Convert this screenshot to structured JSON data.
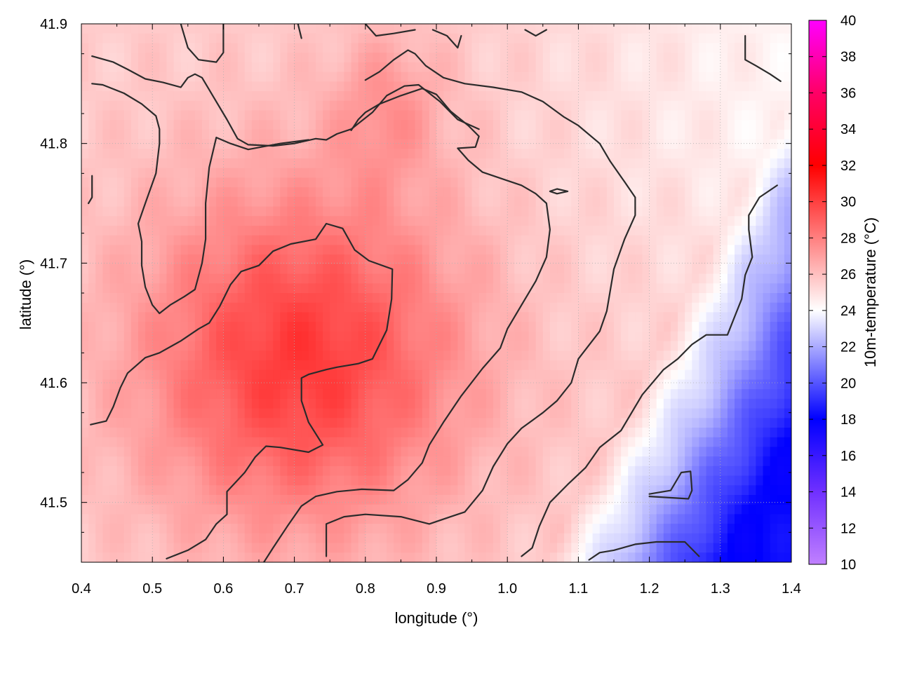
{
  "chart_data": {
    "type": "heatmap",
    "xlabel": "longitude (°)",
    "ylabel": "latitude (°)",
    "colorbar_label": "10m-temperature (°C)",
    "xlim": [
      0.4,
      1.4
    ],
    "ylim": [
      41.45,
      41.9
    ],
    "x_ticks": [
      "0.4",
      "0.5",
      "0.6",
      "0.7",
      "0.8",
      "0.9",
      "1.0",
      "1.1",
      "1.2",
      "1.3",
      "1.4"
    ],
    "y_ticks": [
      "41.5",
      "41.6",
      "41.7",
      "41.8",
      "41.9"
    ],
    "colorbar_range": [
      10,
      40
    ],
    "colorbar_ticks": [
      "10",
      "12",
      "14",
      "16",
      "18",
      "20",
      "22",
      "24",
      "26",
      "28",
      "30",
      "32",
      "34",
      "36",
      "38",
      "40"
    ],
    "colormap": [
      {
        "value": 10,
        "color": "#c080ff"
      },
      {
        "value": 14,
        "color": "#7030ff"
      },
      {
        "value": 18,
        "color": "#0000ff"
      },
      {
        "value": 24,
        "color": "#ffffff"
      },
      {
        "value": 32,
        "color": "#ff0000"
      },
      {
        "value": 36,
        "color": "#ff0066"
      },
      {
        "value": 40,
        "color": "#ff00ff"
      }
    ],
    "grid": true,
    "contours": [
      [
        [
          0.415,
          41.873
        ],
        [
          0.445,
          41.868
        ],
        [
          0.465,
          41.862
        ],
        [
          0.49,
          41.854
        ],
        [
          0.515,
          41.851
        ],
        [
          0.54,
          41.847
        ],
        [
          0.55,
          41.855
        ],
        [
          0.56,
          41.858
        ],
        [
          0.57,
          41.855
        ],
        [
          0.585,
          41.84
        ],
        [
          0.605,
          41.82
        ],
        [
          0.62,
          41.804
        ],
        [
          0.635,
          41.799
        ],
        [
          0.67,
          41.798
        ],
        [
          0.7,
          41.8
        ],
        [
          0.73,
          41.804
        ],
        [
          0.745,
          41.803
        ],
        [
          0.76,
          41.808
        ],
        [
          0.78,
          41.812
        ],
        [
          0.81,
          41.826
        ],
        [
          0.83,
          41.84
        ],
        [
          0.855,
          41.848
        ],
        [
          0.875,
          41.849
        ],
        [
          0.905,
          41.835
        ],
        [
          0.93,
          41.82
        ],
        [
          0.96,
          41.812
        ]
      ],
      [
        [
          0.415,
          41.85
        ],
        [
          0.43,
          41.849
        ],
        [
          0.46,
          41.842
        ],
        [
          0.485,
          41.833
        ],
        [
          0.505,
          41.823
        ],
        [
          0.51,
          41.812
        ],
        [
          0.51,
          41.8
        ],
        [
          0.505,
          41.775
        ],
        [
          0.49,
          41.75
        ],
        [
          0.48,
          41.733
        ],
        [
          0.485,
          41.718
        ],
        [
          0.485,
          41.698
        ],
        [
          0.49,
          41.68
        ],
        [
          0.5,
          41.665
        ],
        [
          0.51,
          41.658
        ],
        [
          0.525,
          41.665
        ],
        [
          0.545,
          41.672
        ],
        [
          0.56,
          41.678
        ],
        [
          0.57,
          41.7
        ],
        [
          0.575,
          41.72
        ],
        [
          0.575,
          41.75
        ],
        [
          0.58,
          41.78
        ],
        [
          0.59,
          41.805
        ],
        [
          0.61,
          41.8
        ],
        [
          0.635,
          41.795
        ],
        [
          0.68,
          41.8
        ],
        [
          0.72,
          41.803
        ]
      ],
      [
        [
          0.413,
          41.565
        ],
        [
          0.435,
          41.568
        ],
        [
          0.445,
          41.58
        ],
        [
          0.455,
          41.596
        ],
        [
          0.465,
          41.608
        ],
        [
          0.49,
          41.621
        ],
        [
          0.51,
          41.625
        ],
        [
          0.54,
          41.635
        ],
        [
          0.565,
          41.645
        ],
        [
          0.58,
          41.65
        ],
        [
          0.595,
          41.664
        ],
        [
          0.61,
          41.682
        ],
        [
          0.625,
          41.693
        ],
        [
          0.65,
          41.698
        ],
        [
          0.67,
          41.71
        ],
        [
          0.695,
          41.716
        ],
        [
          0.73,
          41.72
        ],
        [
          0.745,
          41.733
        ],
        [
          0.768,
          41.729
        ],
        [
          0.785,
          41.711
        ],
        [
          0.805,
          41.702
        ],
        [
          0.838,
          41.695
        ],
        [
          0.837,
          41.67
        ],
        [
          0.83,
          41.644
        ],
        [
          0.81,
          41.62
        ],
        [
          0.79,
          41.616
        ],
        [
          0.76,
          41.613
        ],
        [
          0.745,
          41.611
        ],
        [
          0.72,
          41.607
        ],
        [
          0.71,
          41.604
        ],
        [
          0.71,
          41.585
        ],
        [
          0.72,
          41.567
        ],
        [
          0.74,
          41.548
        ],
        [
          0.72,
          41.542
        ],
        [
          0.68,
          41.546
        ],
        [
          0.66,
          41.547
        ],
        [
          0.645,
          41.538
        ],
        [
          0.63,
          41.525
        ],
        [
          0.605,
          41.509
        ],
        [
          0.605,
          41.49
        ],
        [
          0.59,
          41.482
        ],
        [
          0.575,
          41.469
        ],
        [
          0.55,
          41.46
        ],
        [
          0.52,
          41.453
        ]
      ],
      [
        [
          0.657,
          41.45
        ],
        [
          0.67,
          41.462
        ],
        [
          0.69,
          41.48
        ],
        [
          0.71,
          41.497
        ],
        [
          0.73,
          41.505
        ],
        [
          0.76,
          41.509
        ],
        [
          0.795,
          41.511
        ],
        [
          0.84,
          41.51
        ],
        [
          0.86,
          41.519
        ],
        [
          0.88,
          41.533
        ],
        [
          0.89,
          41.548
        ],
        [
          0.91,
          41.567
        ],
        [
          0.935,
          41.589
        ],
        [
          0.965,
          41.612
        ],
        [
          0.99,
          41.629
        ],
        [
          1.0,
          41.645
        ],
        [
          1.02,
          41.665
        ],
        [
          1.04,
          41.685
        ],
        [
          1.055,
          41.705
        ],
        [
          1.06,
          41.728
        ],
        [
          1.055,
          41.75
        ],
        [
          1.04,
          41.758
        ],
        [
          1.02,
          41.765
        ],
        [
          0.99,
          41.771
        ],
        [
          0.965,
          41.776
        ],
        [
          0.945,
          41.786
        ],
        [
          0.93,
          41.796
        ],
        [
          0.955,
          41.797
        ],
        [
          0.96,
          41.806
        ],
        [
          0.945,
          41.815
        ],
        [
          0.92,
          41.827
        ],
        [
          0.9,
          41.841
        ],
        [
          0.88,
          41.846
        ],
        [
          0.85,
          41.84
        ],
        [
          0.82,
          41.833
        ],
        [
          0.8,
          41.826
        ],
        [
          0.79,
          41.82
        ],
        [
          0.78,
          41.811
        ]
      ],
      [
        [
          0.745,
          41.455
        ],
        [
          0.745,
          41.482
        ],
        [
          0.77,
          41.488
        ],
        [
          0.8,
          41.49
        ],
        [
          0.85,
          41.488
        ],
        [
          0.89,
          41.482
        ],
        [
          0.92,
          41.488
        ],
        [
          0.94,
          41.492
        ],
        [
          0.965,
          41.51
        ],
        [
          0.98,
          41.53
        ],
        [
          1.0,
          41.549
        ],
        [
          1.02,
          41.562
        ],
        [
          1.05,
          41.575
        ],
        [
          1.07,
          41.585
        ],
        [
          1.09,
          41.6
        ],
        [
          1.1,
          41.62
        ],
        [
          1.13,
          41.643
        ],
        [
          1.14,
          41.66
        ],
        [
          1.15,
          41.695
        ],
        [
          1.165,
          41.72
        ],
        [
          1.18,
          41.74
        ],
        [
          1.18,
          41.755
        ],
        [
          1.165,
          41.768
        ],
        [
          1.145,
          41.785
        ],
        [
          1.13,
          41.8
        ],
        [
          1.1,
          41.815
        ],
        [
          1.08,
          41.822
        ],
        [
          1.05,
          41.835
        ],
        [
          1.02,
          41.843
        ],
        [
          0.98,
          41.847
        ],
        [
          0.94,
          41.85
        ],
        [
          0.91,
          41.855
        ],
        [
          0.885,
          41.865
        ],
        [
          0.87,
          41.875
        ],
        [
          0.86,
          41.878
        ],
        [
          0.84,
          41.87
        ],
        [
          0.82,
          41.86
        ],
        [
          0.8,
          41.853
        ]
      ],
      [
        [
          1.02,
          41.455
        ],
        [
          1.035,
          41.462
        ],
        [
          1.045,
          41.48
        ],
        [
          1.06,
          41.5
        ],
        [
          1.085,
          41.515
        ],
        [
          1.11,
          41.529
        ],
        [
          1.13,
          41.546
        ],
        [
          1.16,
          41.56
        ],
        [
          1.175,
          41.575
        ],
        [
          1.19,
          41.59
        ],
        [
          1.21,
          41.604
        ],
        [
          1.22,
          41.611
        ],
        [
          1.24,
          41.62
        ],
        [
          1.26,
          41.632
        ],
        [
          1.28,
          41.64
        ],
        [
          1.31,
          41.64
        ],
        [
          1.32,
          41.655
        ],
        [
          1.33,
          41.67
        ],
        [
          1.335,
          41.69
        ],
        [
          1.345,
          41.705
        ],
        [
          1.34,
          41.728
        ],
        [
          1.34,
          41.74
        ],
        [
          1.355,
          41.755
        ],
        [
          1.38,
          41.765
        ]
      ],
      [
        [
          1.115,
          41.452
        ],
        [
          1.13,
          41.458
        ],
        [
          1.15,
          41.46
        ],
        [
          1.18,
          41.465
        ],
        [
          1.21,
          41.467
        ],
        [
          1.25,
          41.467
        ],
        [
          1.27,
          41.455
        ]
      ],
      [
        [
          1.2,
          41.507
        ],
        [
          1.23,
          41.51
        ],
        [
          1.245,
          41.525
        ],
        [
          1.258,
          41.526
        ],
        [
          1.26,
          41.51
        ],
        [
          1.255,
          41.503
        ],
        [
          1.2,
          41.505
        ]
      ],
      [
        [
          1.335,
          41.89
        ],
        [
          1.335,
          41.87
        ],
        [
          1.35,
          41.865
        ],
        [
          1.37,
          41.858
        ],
        [
          1.385,
          41.852
        ]
      ],
      [
        [
          0.54,
          41.9
        ],
        [
          0.55,
          41.88
        ],
        [
          0.565,
          41.87
        ],
        [
          0.59,
          41.868
        ],
        [
          0.6,
          41.876
        ],
        [
          0.6,
          41.9
        ]
      ],
      [
        [
          0.8,
          41.9
        ],
        [
          0.815,
          41.89
        ],
        [
          0.84,
          41.892
        ],
        [
          0.87,
          41.895
        ]
      ],
      [
        [
          0.895,
          41.895
        ],
        [
          0.915,
          41.89
        ],
        [
          0.93,
          41.88
        ],
        [
          0.935,
          41.89
        ]
      ],
      [
        [
          0.705,
          41.9
        ],
        [
          0.71,
          41.888
        ]
      ],
      [
        [
          1.025,
          41.895
        ],
        [
          1.04,
          41.89
        ],
        [
          1.055,
          41.895
        ]
      ],
      [
        [
          1.06,
          41.76
        ],
        [
          1.07,
          41.762
        ],
        [
          1.085,
          41.76
        ],
        [
          1.07,
          41.758
        ],
        [
          1.06,
          41.76
        ]
      ],
      [
        [
          0.415,
          41.773
        ],
        [
          0.415,
          41.755
        ],
        [
          0.41,
          41.75
        ]
      ]
    ]
  }
}
